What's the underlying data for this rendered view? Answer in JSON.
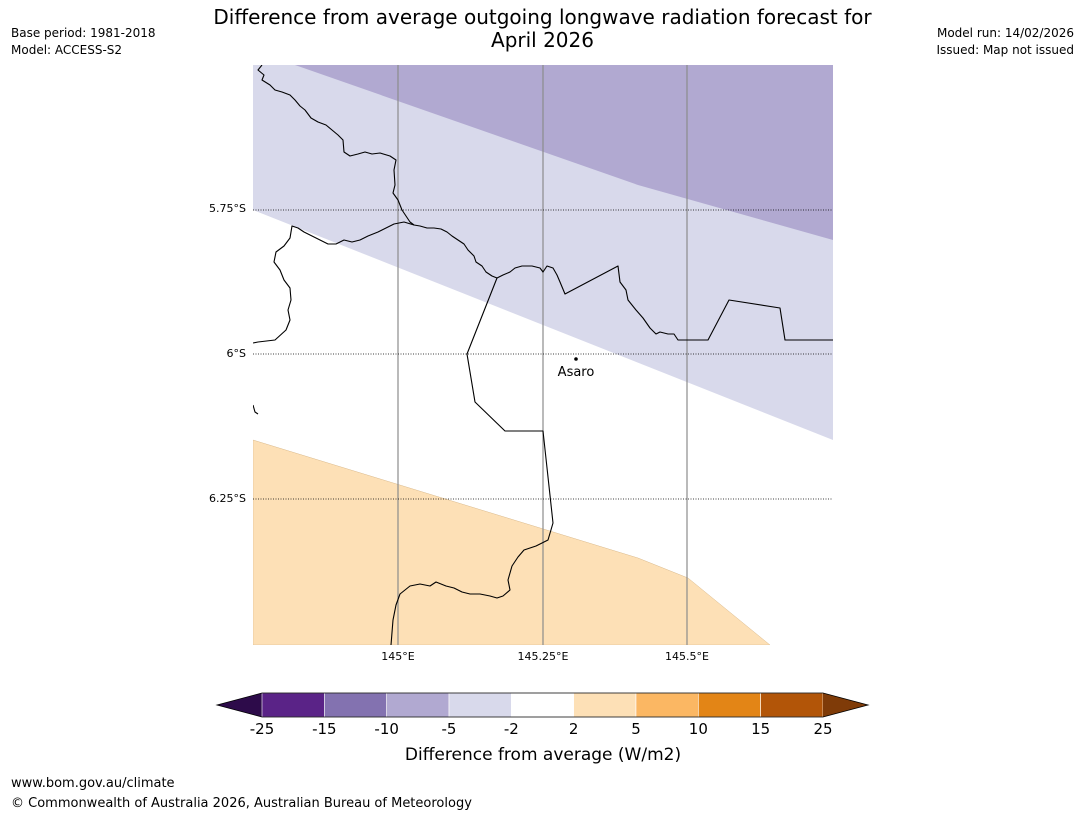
{
  "title_lines": [
    "Difference from average outgoing longwave radiation forecast for",
    "April 2026"
  ],
  "meta_left": {
    "base_period": "Base period: 1981-2018",
    "model": "Model: ACCESS-S2"
  },
  "meta_right": {
    "model_run": "Model run: 14/02/2026",
    "issued": "Issued: Map not issued"
  },
  "map": {
    "lat_labels": [
      "5.75°S",
      "6°S",
      "6.25°S"
    ],
    "lon_labels": [
      "145°E",
      "145.25°E",
      "145.5°E"
    ],
    "place": {
      "name": "Asaro"
    }
  },
  "colorbar": {
    "label": "Difference from average (W/m2)",
    "ticks": [
      "-25",
      "-15",
      "-10",
      "-5",
      "-2",
      "2",
      "5",
      "10",
      "15",
      "25"
    ],
    "colors": [
      "#5a2387",
      "#8372b0",
      "#b1a9d1",
      "#d8d9eb",
      "#ffffff",
      "#fde0b6",
      "#fbb763",
      "#e38516",
      "#b25508"
    ],
    "extend_low_color": "#2d0b4a",
    "extend_high_color": "#7f3b08"
  },
  "footer": {
    "url": "www.bom.gov.au/climate",
    "copyright": "© Commonwealth of Australia 2026, Australian Bureau of Meteorology"
  }
}
